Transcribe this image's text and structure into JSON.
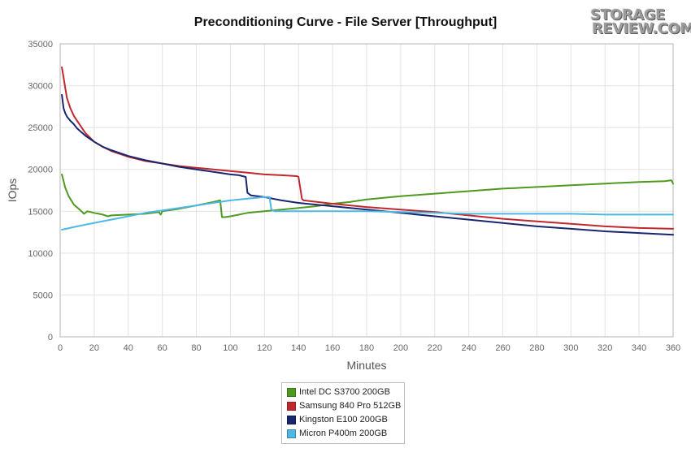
{
  "chart_data": {
    "type": "line",
    "title": "Preconditioning Curve - File Server [Throughput]",
    "xlabel": "Minutes",
    "ylabel": "IOps",
    "xlim": [
      0,
      360
    ],
    "ylim": [
      0,
      35000
    ],
    "xticks": [
      0,
      20,
      40,
      60,
      80,
      100,
      120,
      140,
      160,
      180,
      200,
      220,
      240,
      260,
      280,
      300,
      320,
      340,
      360
    ],
    "yticks": [
      0,
      5000,
      10000,
      15000,
      20000,
      25000,
      30000,
      35000
    ],
    "grid": true,
    "legend_position": "bottom",
    "series": [
      {
        "name": "Intel DC S3700 200GB",
        "color": "#4e9a1e",
        "x": [
          1,
          3,
          5,
          8,
          12,
          14,
          16,
          20,
          25,
          28,
          30,
          40,
          50,
          58,
          59,
          60,
          70,
          80,
          90,
          94,
          95,
          97,
          100,
          110,
          120,
          130,
          140,
          150,
          160,
          170,
          180,
          190,
          200,
          220,
          240,
          260,
          280,
          300,
          320,
          340,
          355,
          359,
          360
        ],
        "y": [
          19400,
          17800,
          16800,
          15800,
          15100,
          14700,
          15000,
          14800,
          14600,
          14400,
          14500,
          14600,
          14700,
          14900,
          14600,
          15000,
          15300,
          15700,
          16100,
          16300,
          14300,
          14300,
          14400,
          14800,
          15000,
          15200,
          15400,
          15600,
          15900,
          16100,
          16400,
          16600,
          16800,
          17100,
          17400,
          17700,
          17900,
          18100,
          18300,
          18500,
          18600,
          18700,
          18300
        ]
      },
      {
        "name": "Samsung 840 Pro 512GB",
        "color": "#c0282e",
        "x": [
          1,
          2,
          3,
          4,
          6,
          8,
          10,
          15,
          20,
          25,
          30,
          40,
          50,
          60,
          70,
          80,
          90,
          100,
          110,
          120,
          130,
          139,
          140,
          142,
          143,
          160,
          180,
          200,
          220,
          240,
          260,
          280,
          300,
          320,
          340,
          360
        ],
        "y": [
          32200,
          31000,
          29700,
          28500,
          27300,
          26400,
          25800,
          24300,
          23300,
          22700,
          22200,
          21500,
          21000,
          20700,
          20400,
          20200,
          20000,
          19800,
          19600,
          19400,
          19300,
          19200,
          19100,
          16500,
          16300,
          15900,
          15500,
          15200,
          14900,
          14500,
          14100,
          13800,
          13500,
          13200,
          13000,
          12900
        ]
      },
      {
        "name": "Kingston E100 200GB",
        "color": "#18266e",
        "x": [
          1,
          2,
          3,
          4,
          6,
          8,
          10,
          15,
          20,
          25,
          30,
          40,
          50,
          60,
          70,
          80,
          90,
          100,
          105,
          109,
          110,
          112,
          120,
          130,
          140,
          160,
          180,
          200,
          220,
          240,
          260,
          280,
          300,
          320,
          340,
          360
        ],
        "y": [
          28900,
          27300,
          26700,
          26300,
          25800,
          25400,
          24900,
          24000,
          23300,
          22700,
          22300,
          21600,
          21100,
          20700,
          20300,
          20000,
          19700,
          19400,
          19300,
          19100,
          17200,
          16900,
          16700,
          16300,
          16000,
          15600,
          15200,
          14800,
          14400,
          14000,
          13600,
          13200,
          12900,
          12600,
          12400,
          12200
        ]
      },
      {
        "name": "Micron P400m 200GB",
        "color": "#4db7e6",
        "x": [
          1,
          10,
          20,
          30,
          40,
          50,
          60,
          70,
          80,
          90,
          100,
          110,
          120,
          123,
          124,
          126,
          140,
          160,
          180,
          200,
          220,
          240,
          260,
          280,
          300,
          320,
          340,
          360
        ],
        "y": [
          12800,
          13200,
          13600,
          14000,
          14400,
          14800,
          15100,
          15400,
          15700,
          16000,
          16300,
          16500,
          16700,
          16700,
          15200,
          15000,
          15000,
          15000,
          15000,
          14900,
          14800,
          14700,
          14700,
          14700,
          14700,
          14600,
          14600,
          14600
        ]
      }
    ]
  },
  "logo": {
    "line1": "STORAGE",
    "line2": "REVIEW.COM",
    "reg": "®"
  }
}
